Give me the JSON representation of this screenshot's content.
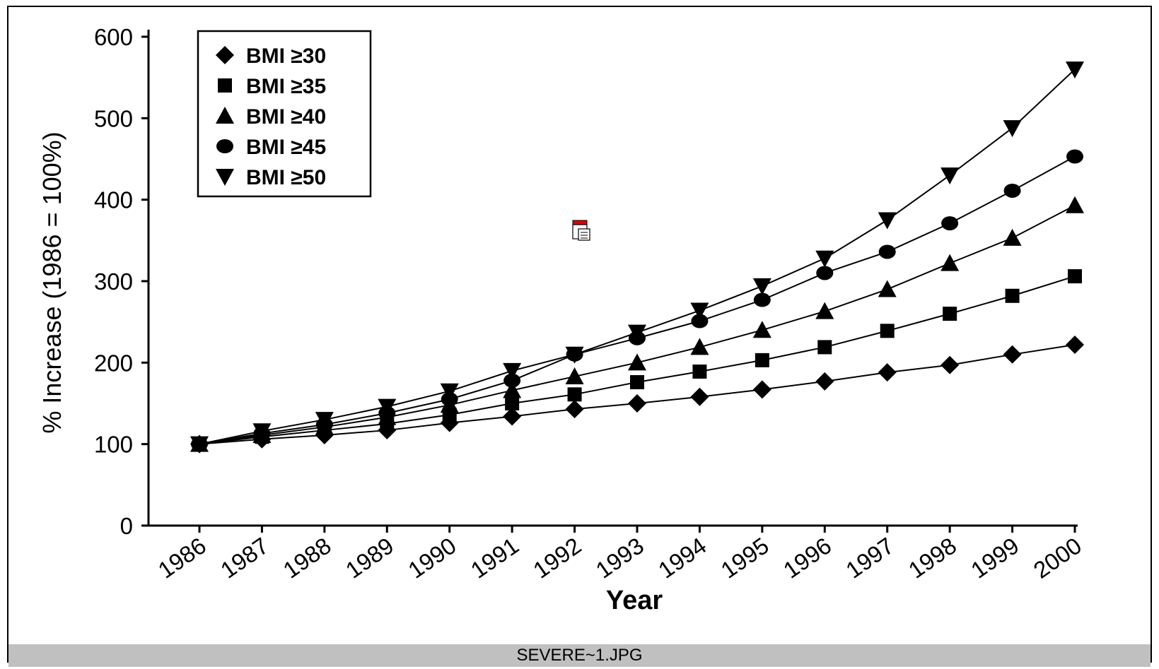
{
  "window": {
    "filename": "SEVERE~1.JPG"
  },
  "icons": {
    "file_icon": "document-icon"
  },
  "chart_data": {
    "type": "line",
    "title": "",
    "xlabel": "Year",
    "ylabel": "% Increase (1986 = 100%)",
    "x": [
      "1986",
      "1987",
      "1988",
      "1989",
      "1990",
      "1991",
      "1992",
      "1993",
      "1994",
      "1995",
      "1996",
      "1997",
      "1998",
      "1999",
      "2000"
    ],
    "ylim": [
      0,
      600
    ],
    "yticks": [
      0,
      100,
      200,
      300,
      400,
      500,
      600
    ],
    "grid": false,
    "legend_position": "top-left",
    "series": [
      {
        "name": "BMI ≥30",
        "marker": "diamond",
        "values": [
          100,
          106,
          111,
          117,
          126,
          134,
          143,
          150,
          158,
          167,
          177,
          188,
          197,
          210,
          222
        ]
      },
      {
        "name": "BMI ≥35",
        "marker": "square",
        "values": [
          100,
          109,
          117,
          125,
          136,
          150,
          161,
          176,
          189,
          203,
          219,
          239,
          260,
          282,
          306
        ]
      },
      {
        "name": "BMI ≥40",
        "marker": "triangle-up",
        "values": [
          100,
          111,
          121,
          133,
          148,
          166,
          183,
          200,
          219,
          240,
          263,
          290,
          322,
          353,
          393
        ]
      },
      {
        "name": "BMI ≥45",
        "marker": "circle",
        "values": [
          100,
          113,
          124,
          138,
          155,
          178,
          210,
          230,
          251,
          277,
          310,
          336,
          371,
          411,
          453
        ]
      },
      {
        "name": "BMI ≥50",
        "marker": "triangle-down",
        "values": [
          100,
          116,
          130,
          146,
          165,
          190,
          210,
          237,
          264,
          294,
          328,
          375,
          430,
          488,
          560
        ]
      }
    ]
  }
}
